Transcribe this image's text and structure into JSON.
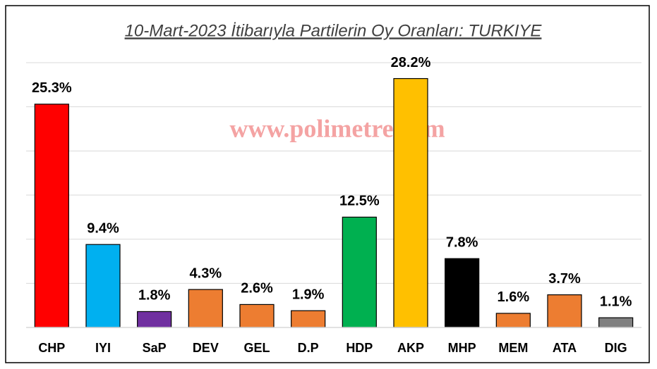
{
  "chart_data": {
    "type": "bar",
    "title": "10-Mart-2023 İtibarıyla Partilerin Oy Oranları: TURKIYE",
    "watermark": "www.polimetre.com",
    "categories": [
      "CHP",
      "IYI",
      "SaP",
      "DEV",
      "GEL",
      "D.P",
      "HDP",
      "AKP",
      "MHP",
      "MEM",
      "ATA",
      "DIG"
    ],
    "values": [
      25.3,
      9.4,
      1.8,
      4.3,
      2.6,
      1.9,
      12.5,
      28.2,
      7.8,
      1.6,
      3.7,
      1.1
    ],
    "value_labels": [
      "25.3%",
      "9.4%",
      "1.8%",
      "4.3%",
      "2.6%",
      "1.9%",
      "12.5%",
      "28.2%",
      "7.8%",
      "1.6%",
      "3.7%",
      "1.1%"
    ],
    "colors": [
      "#ff0000",
      "#00b0f0",
      "#7030a0",
      "#ed7d31",
      "#ed7d31",
      "#ed7d31",
      "#00b050",
      "#ffc000",
      "#000000",
      "#ed7d31",
      "#ed7d31",
      "#808080"
    ],
    "ylim": [
      0,
      30
    ],
    "yticks": [
      0,
      5,
      10,
      15,
      20,
      25,
      30
    ],
    "grid": true
  }
}
